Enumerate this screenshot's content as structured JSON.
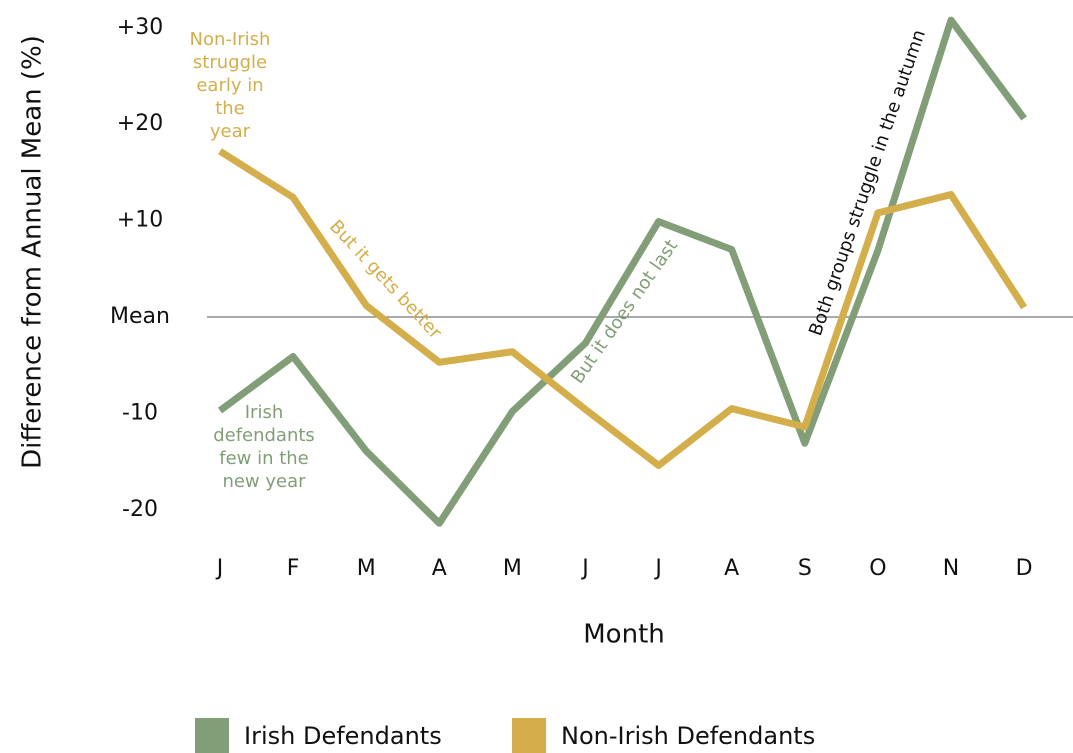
{
  "chart_data": {
    "type": "line",
    "xlabel": "Month",
    "ylabel": "Difference from Annual Mean (%)",
    "categories": [
      "J",
      "F",
      "M",
      "A",
      "M",
      "J",
      "J",
      "A",
      "S",
      "O",
      "N",
      "D"
    ],
    "series": [
      {
        "name": "Irish Defendants",
        "color": "#829e78",
        "values": [
          -9.7,
          -4.1,
          -13.9,
          -21.4,
          -9.8,
          -2.7,
          9.9,
          7.0,
          -13.1,
          6.9,
          30.8,
          20.6
        ]
      },
      {
        "name": "Non-Irish Defendants",
        "color": "#d4ae4a",
        "values": [
          17.2,
          12.4,
          1.2,
          -4.7,
          -3.6,
          -9.6,
          -15.4,
          -9.5,
          -11.4,
          10.8,
          12.7,
          1.0
        ]
      }
    ],
    "ylim": [
      -23,
      31
    ],
    "yticks": [
      {
        "value": 30,
        "label": "+30"
      },
      {
        "value": 20,
        "label": "+20"
      },
      {
        "value": 10,
        "label": "+10"
      },
      {
        "value": 0,
        "label": "Mean"
      },
      -10,
      -20
    ],
    "reference_line": 0,
    "legend": "bottom",
    "annotations": [
      {
        "lines": [
          "Non-Irish",
          "struggle",
          "early in",
          "the",
          "year"
        ],
        "color": "#d4ae4a"
      },
      {
        "lines": [
          "But it gets better"
        ],
        "color": "#d4ae4a"
      },
      {
        "lines": [
          "Irish",
          "defendants",
          "few in the",
          "new year"
        ],
        "color": "#829e78"
      },
      {
        "lines": [
          "But it does not last"
        ],
        "color": "#829e78"
      },
      {
        "lines": [
          "Both groups struggle in the autumn"
        ],
        "color": "#111111"
      }
    ]
  }
}
